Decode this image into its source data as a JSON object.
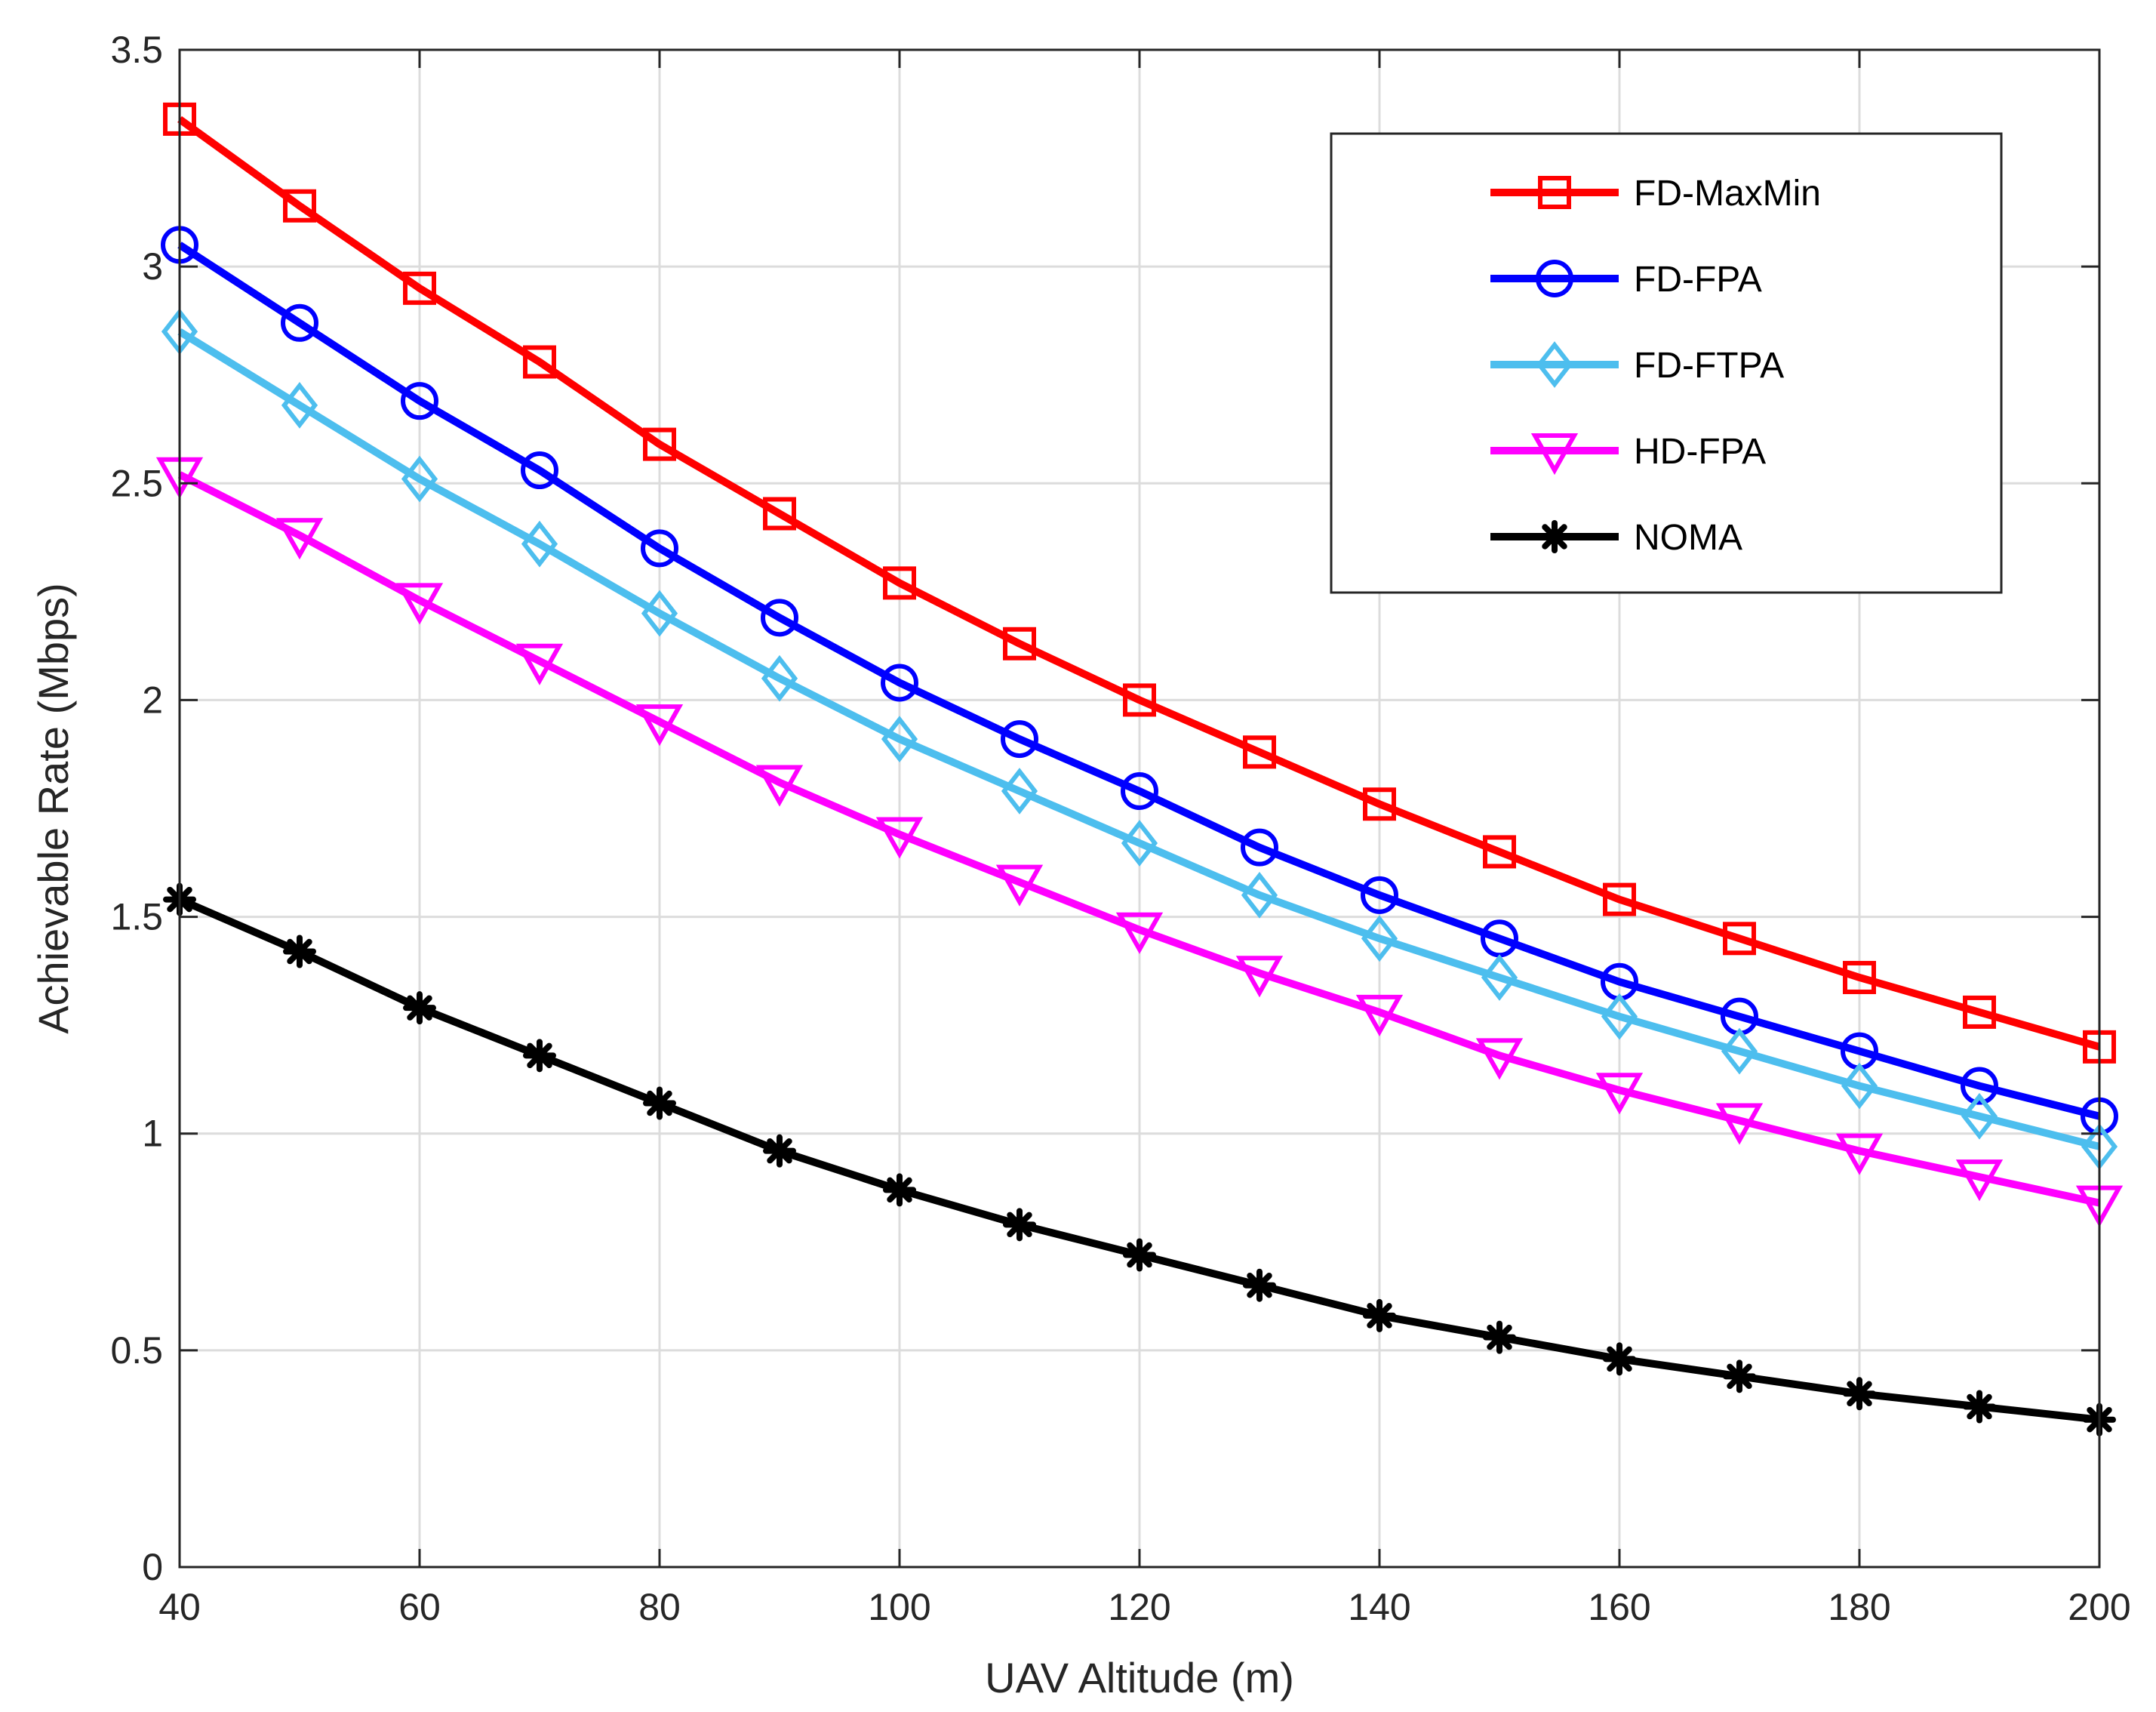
{
  "chart_data": {
    "type": "line",
    "title": "",
    "xlabel": "UAV Altitude (m)",
    "ylabel": "Achievable Rate (Mbps)",
    "xlim": [
      40,
      200
    ],
    "ylim": [
      0,
      3.5
    ],
    "xticks": [
      40,
      60,
      80,
      100,
      120,
      140,
      160,
      180,
      200
    ],
    "yticks": [
      0,
      0.5,
      1,
      1.5,
      2,
      2.5,
      3,
      3.5
    ],
    "xtick_labels": [
      "40",
      "60",
      "80",
      "100",
      "120",
      "140",
      "160",
      "180",
      "200"
    ],
    "ytick_labels": [
      "0",
      "0.5",
      "1",
      "1.5",
      "2",
      "2.5",
      "3",
      "3.5"
    ],
    "grid": true,
    "legend_position": "top-right",
    "x": [
      40,
      50,
      60,
      70,
      80,
      90,
      100,
      110,
      120,
      130,
      140,
      150,
      160,
      170,
      180,
      190,
      200
    ],
    "series": [
      {
        "name": "FD-MaxMin",
        "color": "#ff0000",
        "marker": "square",
        "values": [
          3.34,
          3.14,
          2.95,
          2.78,
          2.59,
          2.43,
          2.27,
          2.13,
          2.0,
          1.88,
          1.76,
          1.65,
          1.54,
          1.45,
          1.36,
          1.28,
          1.2
        ]
      },
      {
        "name": "FD-FPA",
        "color": "#0000ff",
        "marker": "circle",
        "values": [
          3.05,
          2.87,
          2.69,
          2.53,
          2.35,
          2.19,
          2.04,
          1.91,
          1.79,
          1.66,
          1.55,
          1.45,
          1.35,
          1.27,
          1.19,
          1.11,
          1.04
        ]
      },
      {
        "name": "FD-FTPA",
        "color": "#4dbeee",
        "marker": "diamond",
        "values": [
          2.85,
          2.68,
          2.51,
          2.36,
          2.2,
          2.05,
          1.91,
          1.79,
          1.67,
          1.55,
          1.45,
          1.36,
          1.27,
          1.19,
          1.11,
          1.04,
          0.97
        ]
      },
      {
        "name": "HD-FPA",
        "color": "#ff00ff",
        "marker": "triangle-down",
        "values": [
          2.52,
          2.38,
          2.23,
          2.09,
          1.95,
          1.81,
          1.69,
          1.58,
          1.47,
          1.37,
          1.28,
          1.18,
          1.1,
          1.03,
          0.96,
          0.9,
          0.84
        ]
      },
      {
        "name": "NOMA",
        "color": "#000000",
        "marker": "asterisk",
        "values": [
          1.54,
          1.42,
          1.29,
          1.18,
          1.07,
          0.96,
          0.87,
          0.79,
          0.72,
          0.65,
          0.58,
          0.53,
          0.48,
          0.44,
          0.4,
          0.37,
          0.34
        ]
      }
    ]
  }
}
